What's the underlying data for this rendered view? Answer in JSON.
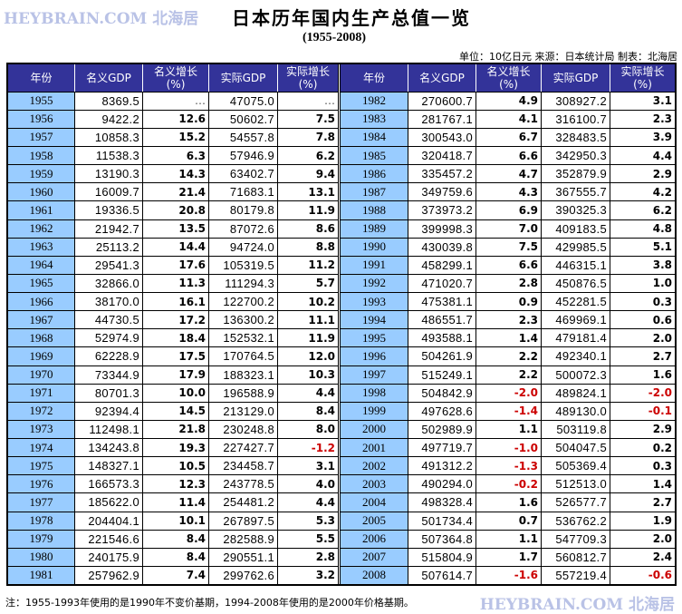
{
  "header": {
    "brand": "HEYBRAIN.COM 北海居",
    "title": "日本历年国内生产总值一览",
    "subtitle": "(1955-2008)",
    "meta": "单位：10亿日元  来源：日本统计局  制表：北海居"
  },
  "table": {
    "columns": [
      "年份",
      "名义GDP",
      "名义增长\n(%)",
      "实际GDP",
      "实际增长\n(%)"
    ],
    "columns_display": {
      "year": "年份",
      "nominal_gdp": "名义GDP",
      "nominal_growth_l1": "名义增长",
      "nominal_growth_l2": "(%)",
      "real_gdp": "实际GDP",
      "real_growth_l1": "实际增长",
      "real_growth_l2": "(%)"
    },
    "colors": {
      "header_bg": "#333399",
      "year_bg": "#99ccff",
      "negative": "#cc0000"
    },
    "rows": [
      [
        "1955",
        "8369.5",
        "…",
        "47075.0",
        "…"
      ],
      [
        "1956",
        "9422.2",
        "12.6",
        "50602.7",
        "7.5"
      ],
      [
        "1957",
        "10858.3",
        "15.2",
        "54557.8",
        "7.8"
      ],
      [
        "1958",
        "11538.3",
        "6.3",
        "57946.9",
        "6.2"
      ],
      [
        "1959",
        "13190.3",
        "14.3",
        "63402.7",
        "9.4"
      ],
      [
        "1960",
        "16009.7",
        "21.4",
        "71683.1",
        "13.1"
      ],
      [
        "1961",
        "19336.5",
        "20.8",
        "80179.8",
        "11.9"
      ],
      [
        "1962",
        "21942.7",
        "13.5",
        "87072.6",
        "8.6"
      ],
      [
        "1963",
        "25113.2",
        "14.4",
        "94724.0",
        "8.8"
      ],
      [
        "1964",
        "29541.3",
        "17.6",
        "105319.5",
        "11.2"
      ],
      [
        "1965",
        "32866.0",
        "11.3",
        "111294.3",
        "5.7"
      ],
      [
        "1966",
        "38170.0",
        "16.1",
        "122700.2",
        "10.2"
      ],
      [
        "1967",
        "44730.5",
        "17.2",
        "136300.2",
        "11.1"
      ],
      [
        "1968",
        "52974.9",
        "18.4",
        "152532.1",
        "11.9"
      ],
      [
        "1969",
        "62228.9",
        "17.5",
        "170764.5",
        "12.0"
      ],
      [
        "1970",
        "73344.9",
        "17.9",
        "188323.1",
        "10.3"
      ],
      [
        "1971",
        "80701.3",
        "10.0",
        "196588.9",
        "4.4"
      ],
      [
        "1972",
        "92394.4",
        "14.5",
        "213129.0",
        "8.4"
      ],
      [
        "1973",
        "112498.1",
        "21.8",
        "230248.8",
        "8.0"
      ],
      [
        "1974",
        "134243.8",
        "19.3",
        "227427.7",
        "-1.2"
      ],
      [
        "1975",
        "148327.1",
        "10.5",
        "234458.7",
        "3.1"
      ],
      [
        "1976",
        "166573.3",
        "12.3",
        "243778.5",
        "4.0"
      ],
      [
        "1977",
        "185622.0",
        "11.4",
        "254481.2",
        "4.4"
      ],
      [
        "1978",
        "204404.1",
        "10.1",
        "267897.5",
        "5.3"
      ],
      [
        "1979",
        "221546.6",
        "8.4",
        "282588.9",
        "5.5"
      ],
      [
        "1980",
        "240175.9",
        "8.4",
        "290551.1",
        "2.8"
      ],
      [
        "1981",
        "257962.9",
        "7.4",
        "299762.6",
        "3.2"
      ],
      [
        "1982",
        "270600.7",
        "4.9",
        "308927.2",
        "3.1"
      ],
      [
        "1983",
        "281767.1",
        "4.1",
        "316100.7",
        "2.3"
      ],
      [
        "1984",
        "300543.0",
        "6.7",
        "328483.5",
        "3.9"
      ],
      [
        "1985",
        "320418.7",
        "6.6",
        "342950.3",
        "4.4"
      ],
      [
        "1986",
        "335457.2",
        "4.7",
        "352879.9",
        "2.9"
      ],
      [
        "1987",
        "349759.6",
        "4.3",
        "367555.7",
        "4.2"
      ],
      [
        "1988",
        "373973.2",
        "6.9",
        "390325.3",
        "6.2"
      ],
      [
        "1989",
        "399998.3",
        "7.0",
        "409183.5",
        "4.8"
      ],
      [
        "1990",
        "430039.8",
        "7.5",
        "429985.5",
        "5.1"
      ],
      [
        "1991",
        "458299.1",
        "6.6",
        "446315.1",
        "3.8"
      ],
      [
        "1992",
        "471020.7",
        "2.8",
        "450876.5",
        "1.0"
      ],
      [
        "1993",
        "475381.1",
        "0.9",
        "452281.5",
        "0.3"
      ],
      [
        "1994",
        "486551.7",
        "2.3",
        "469969.1",
        "0.6"
      ],
      [
        "1995",
        "493588.1",
        "1.4",
        "479181.4",
        "2.0"
      ],
      [
        "1996",
        "504261.9",
        "2.2",
        "492340.1",
        "2.7"
      ],
      [
        "1997",
        "515249.1",
        "2.2",
        "500072.3",
        "1.6"
      ],
      [
        "1998",
        "504842.9",
        "-2.0",
        "489824.1",
        "-2.0"
      ],
      [
        "1999",
        "497628.6",
        "-1.4",
        "489130.0",
        "-0.1"
      ],
      [
        "2000",
        "502989.9",
        "1.1",
        "503119.8",
        "2.9"
      ],
      [
        "2001",
        "497719.7",
        "-1.0",
        "504047.5",
        "0.2"
      ],
      [
        "2002",
        "491312.2",
        "-1.3",
        "505369.4",
        "0.3"
      ],
      [
        "2003",
        "490294.0",
        "-0.2",
        "512513.0",
        "1.4"
      ],
      [
        "2004",
        "498328.4",
        "1.6",
        "526577.7",
        "2.7"
      ],
      [
        "2005",
        "501734.4",
        "0.7",
        "536762.2",
        "1.9"
      ],
      [
        "2006",
        "507364.8",
        "1.1",
        "547709.3",
        "2.0"
      ],
      [
        "2007",
        "515804.9",
        "1.7",
        "560812.7",
        "2.4"
      ],
      [
        "2008",
        "507614.7",
        "-1.6",
        "557219.4",
        "-0.6"
      ]
    ]
  },
  "footer": {
    "note": "注：1955-1993年使用的是1990年不变价基期，1994-2008年使用的是2000年价格基期。",
    "brand": "HEYBRAIN.COM 北海居"
  }
}
